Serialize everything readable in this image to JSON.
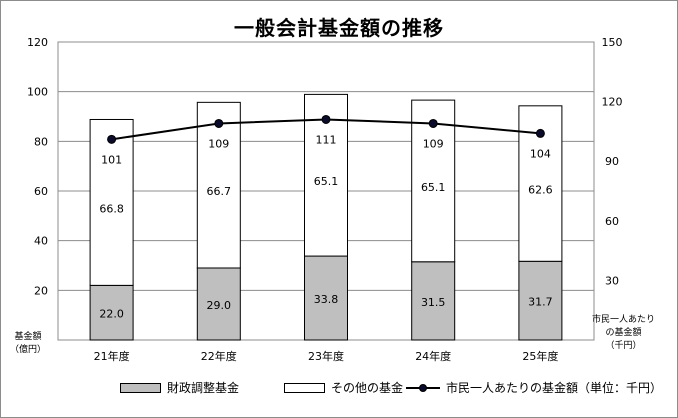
{
  "chart_data": {
    "type": "bar",
    "title": "一般会計基金額の推移",
    "categories": [
      "21年度",
      "22年度",
      "23年度",
      "24年度",
      "25年度"
    ],
    "series": [
      {
        "name": "財政調整基金",
        "kind": "stacked-bar",
        "color": "#bfbfbf",
        "values": [
          22.0,
          29.0,
          33.8,
          31.5,
          31.7
        ]
      },
      {
        "name": "その他の基金",
        "kind": "stacked-bar",
        "color": "#ffffff",
        "values": [
          66.8,
          66.7,
          65.1,
          65.1,
          62.6
        ]
      },
      {
        "name": "市民一人あたりの基金額（単位：千円）",
        "kind": "line",
        "axis": "right",
        "color": "#000000",
        "values": [
          101,
          109,
          111,
          109,
          104
        ]
      }
    ],
    "y_left": {
      "label": "基金額\n（億円）",
      "lim": [
        0,
        120
      ],
      "ticks": [
        20,
        40,
        60,
        80,
        100,
        120
      ]
    },
    "y_right": {
      "label": "市民一人あたり\nの基金額\n（千円）",
      "lim": [
        0,
        150
      ],
      "ticks": [
        30,
        60,
        90,
        120,
        150
      ]
    },
    "grid": true,
    "legend_position": "bottom"
  },
  "labels": {
    "left_axis": [
      "基金額",
      "（億円）"
    ],
    "right_axis": [
      "市民一人あたり",
      "の基金額",
      "（千円）"
    ],
    "legend_bar1": "財政調整基金",
    "legend_bar2": "その他の基金",
    "legend_line": "市民一人あたりの基金額（単位：千円）"
  }
}
